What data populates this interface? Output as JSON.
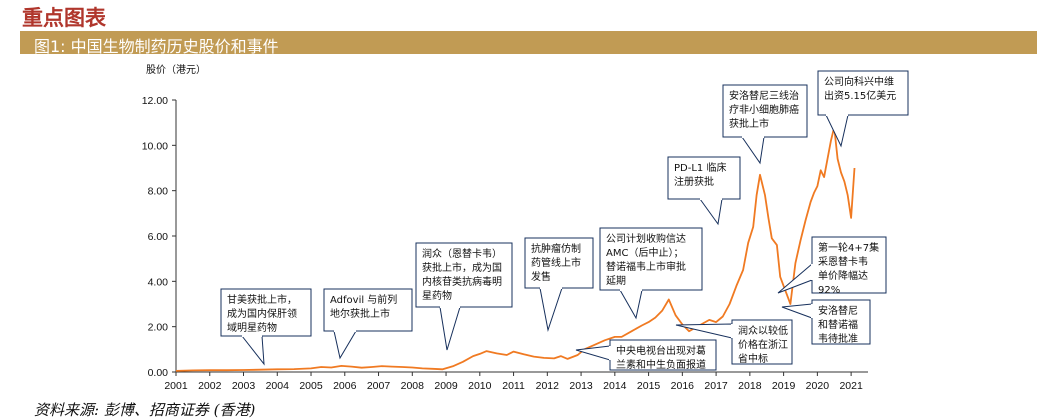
{
  "header": {
    "section_title": "重点图表",
    "figure_title": "图1:  中国生物制药历史股价和事件"
  },
  "footer": {
    "source": "资料来源: 彭博、招商证券 (香港)"
  },
  "colors": {
    "line": "#f07a22",
    "accent_bar": "#c19b54",
    "section_title": "#b0362c",
    "callout_border": "#17305c"
  },
  "chart_data": {
    "type": "line",
    "ylabel": "股价（港元）",
    "xlabel": "",
    "ylim": [
      0,
      12
    ],
    "xlim": [
      2001,
      2021.5
    ],
    "grid": false,
    "yticks": [
      "0.00",
      "2.00",
      "4.00",
      "6.00",
      "8.00",
      "10.00",
      "12.00"
    ],
    "xticks": [
      "2001",
      "2002",
      "2003",
      "2004",
      "2005",
      "2006",
      "2007",
      "2008",
      "2009",
      "2010",
      "2011",
      "2012",
      "2013",
      "2014",
      "2015",
      "2016",
      "2017",
      "2018",
      "2019",
      "2020",
      "2021"
    ],
    "series": [
      {
        "x": [
          2001.0,
          2001.5,
          2002.0,
          2002.5,
          2003.0,
          2003.5,
          2004.0,
          2004.5,
          2005.0,
          2005.3,
          2005.6,
          2005.9,
          2006.2,
          2006.5,
          2006.8,
          2007.1,
          2007.4,
          2007.7,
          2008.0,
          2008.3,
          2008.6,
          2008.9,
          2009.2,
          2009.5,
          2009.8,
          2010.0,
          2010.2,
          2010.5,
          2010.8,
          2011.0,
          2011.3,
          2011.6,
          2011.9,
          2012.2,
          2012.4,
          2012.6,
          2012.9,
          2013.1,
          2013.4,
          2013.7,
          2014.0,
          2014.2,
          2014.5,
          2014.8,
          2015.0,
          2015.2,
          2015.4,
          2015.6,
          2015.8,
          2016.0,
          2016.2,
          2016.5,
          2016.8,
          2017.0,
          2017.2,
          2017.4,
          2017.6,
          2017.8,
          2017.95,
          2018.1,
          2018.2,
          2018.3,
          2018.45,
          2018.55,
          2018.65,
          2018.8,
          2018.9,
          2019.0,
          2019.1,
          2019.2,
          2019.35,
          2019.5,
          2019.65,
          2019.8,
          2019.9,
          2020.0,
          2020.1,
          2020.2,
          2020.3,
          2020.4,
          2020.5,
          2020.6,
          2020.7,
          2020.8,
          2020.9,
          2021.0,
          2021.1
        ],
        "y": [
          0.05,
          0.07,
          0.08,
          0.08,
          0.09,
          0.1,
          0.12,
          0.13,
          0.16,
          0.22,
          0.2,
          0.27,
          0.24,
          0.19,
          0.22,
          0.26,
          0.24,
          0.22,
          0.2,
          0.16,
          0.14,
          0.12,
          0.25,
          0.45,
          0.7,
          0.8,
          0.92,
          0.82,
          0.75,
          0.9,
          0.78,
          0.68,
          0.62,
          0.6,
          0.7,
          0.58,
          0.75,
          1.0,
          1.2,
          1.4,
          1.55,
          1.55,
          1.8,
          2.05,
          2.2,
          2.4,
          2.7,
          3.2,
          2.5,
          2.1,
          1.8,
          2.05,
          2.3,
          2.2,
          2.45,
          3.0,
          3.8,
          4.5,
          5.7,
          6.4,
          7.8,
          8.7,
          7.8,
          6.8,
          5.9,
          5.6,
          4.2,
          3.8,
          3.4,
          3.0,
          4.8,
          5.8,
          6.7,
          7.5,
          7.9,
          8.2,
          8.9,
          8.6,
          9.4,
          10.2,
          10.8,
          9.4,
          8.8,
          8.4,
          7.8,
          6.8,
          9.0
        ]
      }
    ],
    "annotations": [
      "甘美获批上市，|成为国内保肝领|域明星药物",
      "Adfovil 与前列|地尔获批上市",
      "润众（恩替卡韦）|获批上市，成为国|内核苷类抗病毒明|星药物",
      "抗肿瘤仿制|药管线上市|发售",
      "公司计划收购信达|AMC（后中止）；|替诺福韦上市审批|延期",
      "中央电视台出现对葛|兰素和中生负面报道",
      "润众以较低|价格在浙江|省中标",
      "PD-L1 临床|注册获批",
      "安洛替尼三线治|疗非小细胞肺癌|获批上市",
      "公司向科兴中维|出资5.15亿美元",
      "第一轮4+7集|采恩替卡韦|单价降幅达|92%",
      "安洛替尼|和替诺福|韦待批准"
    ]
  }
}
